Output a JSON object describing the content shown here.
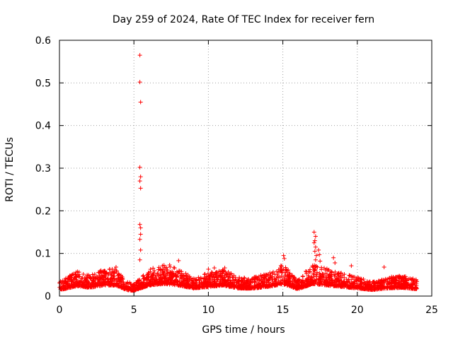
{
  "chart_data": {
    "type": "scatter",
    "title": "Day 259 of 2024, Rate Of TEC Index for receiver fern",
    "xlabel": "GPS time / hours",
    "ylabel": "ROTI / TECUs",
    "xlim": [
      0,
      25
    ],
    "ylim": [
      0,
      0.6
    ],
    "xticks": [
      0,
      5,
      10,
      15,
      20,
      25
    ],
    "xtick_labels": [
      "0",
      "5",
      "10",
      "15",
      "20",
      "25"
    ],
    "yticks": [
      0,
      0.1,
      0.2,
      0.3,
      0.4,
      0.5,
      0.6
    ],
    "ytick_labels": [
      "0",
      "0.1",
      "0.2",
      "0.3",
      "0.4",
      "0.5",
      "0.6"
    ],
    "grid": true,
    "marker": "+",
    "color": "#ff0000",
    "x_coverage_hours": [
      0,
      24
    ],
    "outliers": [
      {
        "x": 5.4,
        "y": 0.565
      },
      {
        "x": 5.4,
        "y": 0.502
      },
      {
        "x": 5.45,
        "y": 0.455
      },
      {
        "x": 5.4,
        "y": 0.302
      },
      {
        "x": 5.45,
        "y": 0.28
      },
      {
        "x": 5.4,
        "y": 0.27
      },
      {
        "x": 5.45,
        "y": 0.253
      },
      {
        "x": 5.4,
        "y": 0.168
      },
      {
        "x": 5.45,
        "y": 0.16
      },
      {
        "x": 5.45,
        "y": 0.145
      },
      {
        "x": 5.4,
        "y": 0.133
      },
      {
        "x": 5.45,
        "y": 0.108
      },
      {
        "x": 5.4,
        "y": 0.085
      },
      {
        "x": 17.1,
        "y": 0.15
      },
      {
        "x": 17.2,
        "y": 0.14
      },
      {
        "x": 17.15,
        "y": 0.13
      },
      {
        "x": 17.1,
        "y": 0.125
      },
      {
        "x": 17.2,
        "y": 0.115
      },
      {
        "x": 17.15,
        "y": 0.105
      },
      {
        "x": 17.25,
        "y": 0.095
      },
      {
        "x": 17.2,
        "y": 0.085
      },
      {
        "x": 17.4,
        "y": 0.108
      },
      {
        "x": 17.45,
        "y": 0.097
      },
      {
        "x": 17.5,
        "y": 0.082
      },
      {
        "x": 18.4,
        "y": 0.09
      },
      {
        "x": 18.5,
        "y": 0.078
      },
      {
        "x": 15.05,
        "y": 0.095
      },
      {
        "x": 15.1,
        "y": 0.088
      },
      {
        "x": 19.6,
        "y": 0.071
      },
      {
        "x": 21.8,
        "y": 0.068
      },
      {
        "x": 3.8,
        "y": 0.068
      },
      {
        "x": 7.4,
        "y": 0.073
      },
      {
        "x": 8.0,
        "y": 0.083
      },
      {
        "x": 10.0,
        "y": 0.063
      },
      {
        "x": 10.4,
        "y": 0.066
      },
      {
        "x": 11.1,
        "y": 0.066
      }
    ],
    "baseline_envelope": [
      {
        "x": 0,
        "y": 0.03
      },
      {
        "x": 0.5,
        "y": 0.04
      },
      {
        "x": 1.2,
        "y": 0.055
      },
      {
        "x": 2.0,
        "y": 0.045
      },
      {
        "x": 3.0,
        "y": 0.06
      },
      {
        "x": 3.8,
        "y": 0.06
      },
      {
        "x": 4.5,
        "y": 0.03
      },
      {
        "x": 5.0,
        "y": 0.025
      },
      {
        "x": 6.0,
        "y": 0.06
      },
      {
        "x": 7.0,
        "y": 0.07
      },
      {
        "x": 8.0,
        "y": 0.06
      },
      {
        "x": 9.0,
        "y": 0.04
      },
      {
        "x": 10.0,
        "y": 0.05
      },
      {
        "x": 11.0,
        "y": 0.06
      },
      {
        "x": 12.0,
        "y": 0.04
      },
      {
        "x": 13.0,
        "y": 0.04
      },
      {
        "x": 14.0,
        "y": 0.05
      },
      {
        "x": 15.0,
        "y": 0.07
      },
      {
        "x": 16.0,
        "y": 0.035
      },
      {
        "x": 17.0,
        "y": 0.07
      },
      {
        "x": 18.0,
        "y": 0.06
      },
      {
        "x": 19.0,
        "y": 0.05
      },
      {
        "x": 20.0,
        "y": 0.04
      },
      {
        "x": 21.0,
        "y": 0.03
      },
      {
        "x": 22.0,
        "y": 0.04
      },
      {
        "x": 23.0,
        "y": 0.045
      },
      {
        "x": 24.0,
        "y": 0.035
      }
    ]
  }
}
